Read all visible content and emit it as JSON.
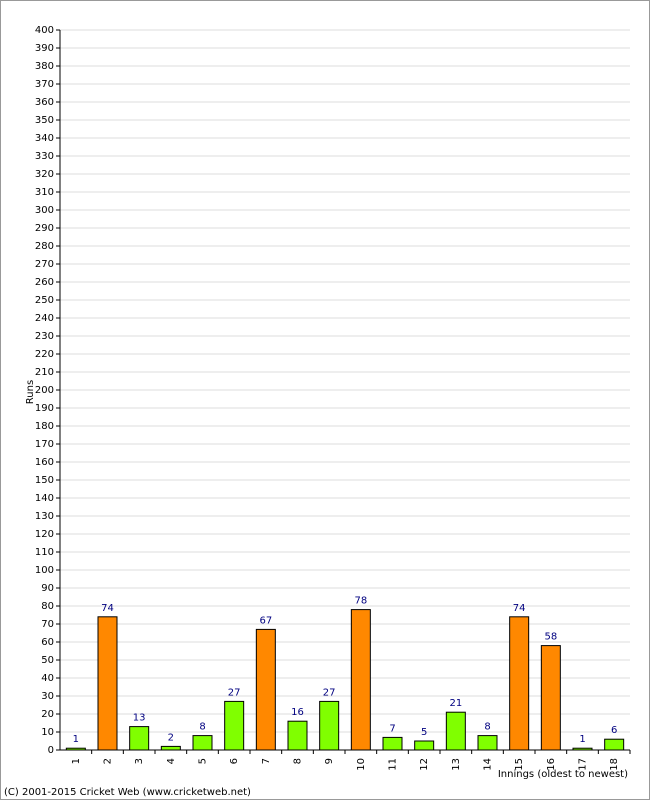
{
  "chart_data": {
    "type": "bar",
    "y_label": "Runs",
    "x_label": "Innings (oldest to newest)",
    "footer": "(C) 2001-2015 Cricket Web (www.cricketweb.net)",
    "categories": [
      "1",
      "2",
      "3",
      "4",
      "5",
      "6",
      "7",
      "8",
      "9",
      "10",
      "11",
      "12",
      "13",
      "14",
      "15",
      "16",
      "17",
      "18"
    ],
    "values": [
      1,
      74,
      13,
      2,
      8,
      27,
      67,
      16,
      27,
      78,
      7,
      5,
      21,
      8,
      74,
      58,
      1,
      6
    ],
    "colors": [
      "#80ff00",
      "#ff8800",
      "#80ff00",
      "#80ff00",
      "#80ff00",
      "#80ff00",
      "#ff8800",
      "#80ff00",
      "#80ff00",
      "#ff8800",
      "#80ff00",
      "#80ff00",
      "#80ff00",
      "#80ff00",
      "#ff8800",
      "#ff8800",
      "#80ff00",
      "#80ff00"
    ],
    "ylim": [
      0,
      400
    ],
    "yticks": [
      0,
      10,
      20,
      30,
      40,
      50,
      60,
      70,
      80,
      90,
      100,
      110,
      120,
      130,
      140,
      150,
      160,
      170,
      180,
      190,
      200,
      210,
      220,
      230,
      240,
      250,
      260,
      270,
      280,
      290,
      300,
      310,
      320,
      330,
      340,
      350,
      360,
      370,
      380,
      390,
      400
    ],
    "grid": true
  }
}
